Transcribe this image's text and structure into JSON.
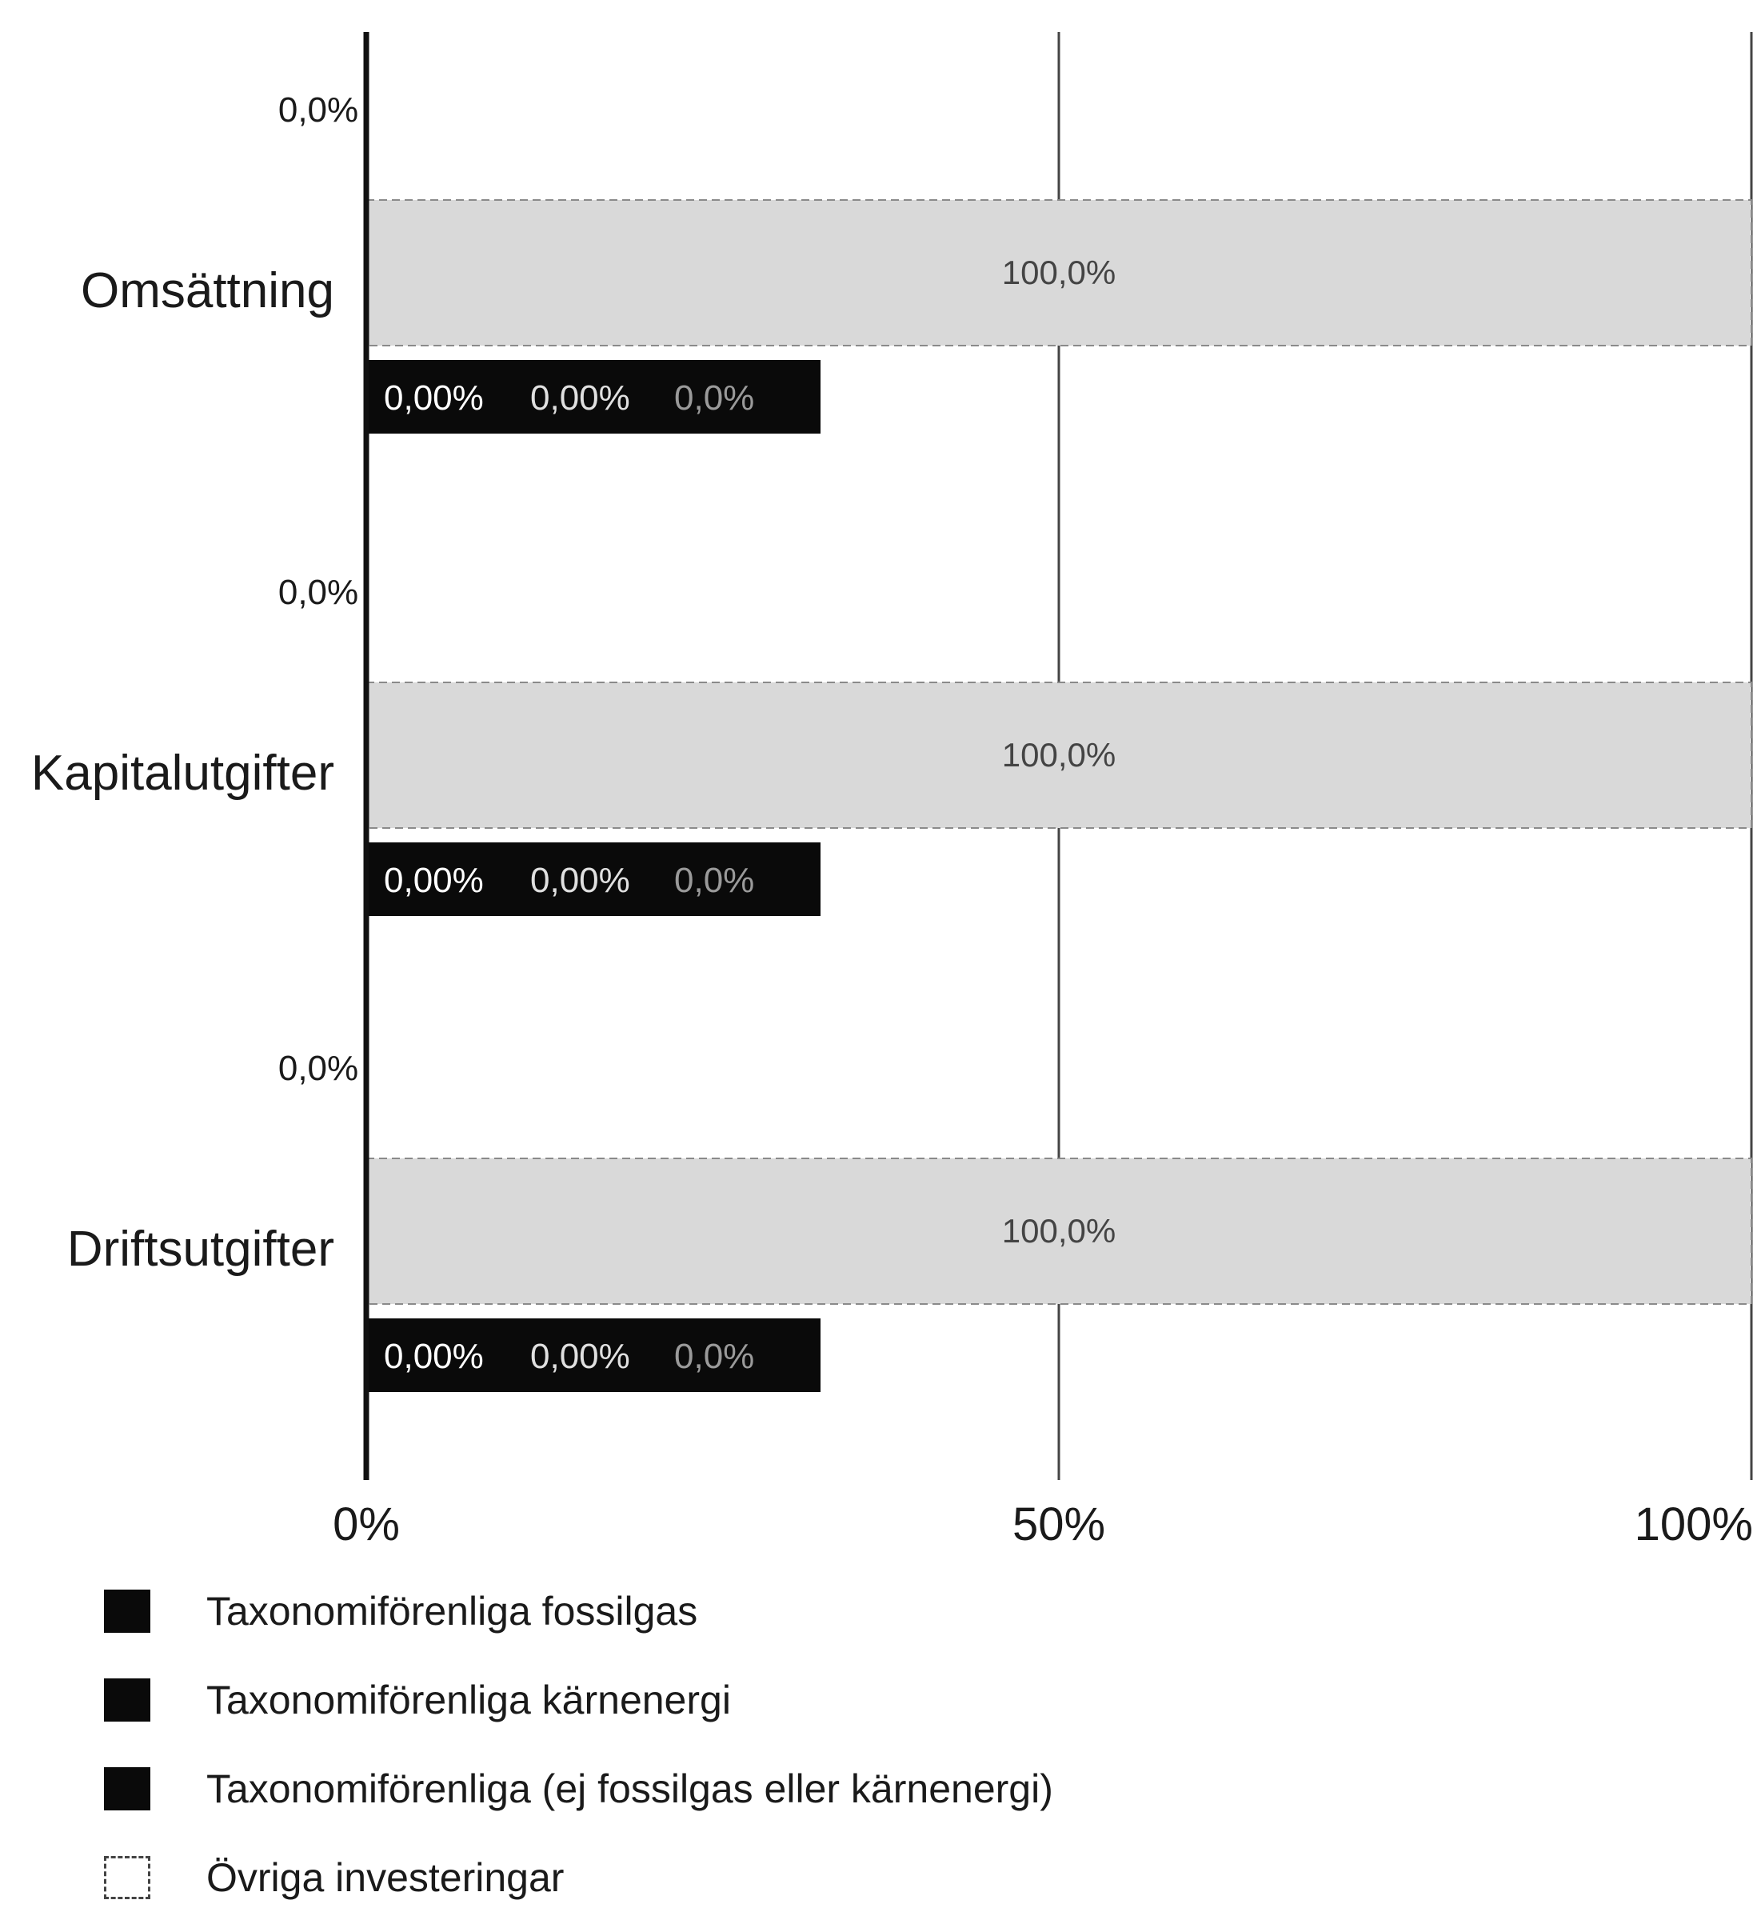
{
  "chart_data": {
    "type": "bar",
    "orientation": "horizontal",
    "stacked": true,
    "categories": [
      "Omsättning",
      "Kapitalutgifter",
      "Driftsutgifter"
    ],
    "xlim": [
      0,
      100
    ],
    "x_ticks": [
      "0%",
      "50%",
      "100%"
    ],
    "grid": true,
    "legend_position": "bottom-left",
    "top_values": [
      "0,0%",
      "0,0%",
      "0,0%"
    ],
    "series": [
      {
        "name": "Taxonomiförenliga fossilgas",
        "bar": "lower",
        "color": "#0a0a0a",
        "values": [
          0,
          0,
          0
        ],
        "labels": [
          "0,00%",
          "0,00%",
          "0,00%"
        ]
      },
      {
        "name": "Taxonomiförenliga kärnenergi",
        "bar": "lower",
        "color": "#0a0a0a",
        "values": [
          0,
          0,
          0
        ],
        "labels": [
          "0,00%",
          "0,00%",
          "0,00%"
        ]
      },
      {
        "name": "Taxonomiförenliga (ej fossilgas eller kärnenergi)",
        "bar": "lower",
        "color": "#0a0a0a",
        "values": [
          0,
          0,
          0
        ],
        "labels": [
          "0,0%",
          "0,0%",
          "0,0%"
        ]
      },
      {
        "name": "Övriga investeringar",
        "bar": "upper",
        "color": "#d9d9d9",
        "values": [
          100,
          100,
          100
        ],
        "labels": [
          "100,0%",
          "100,0%",
          "100,0%"
        ]
      }
    ]
  }
}
